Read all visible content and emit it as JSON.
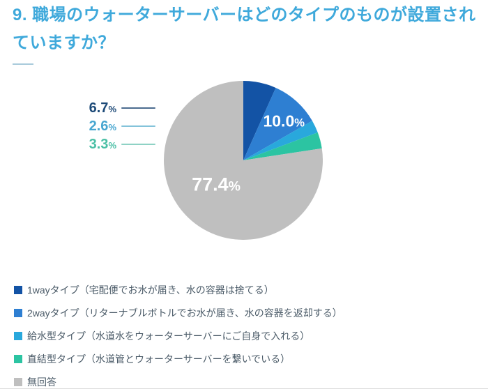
{
  "chart_data": {
    "type": "pie",
    "title": "9. 職場のウォーターサーバーはどのタイプのものが設置されていますか？",
    "title_color": "#3fa9db",
    "categories": [
      "1wayタイプ（宅配便でお水が届き、水の容器は捨てる）",
      "2wayタイプ（リターナブルボトルでお水が届き、水の容器を返却する）",
      "給水型タイプ（水道水をウォーターサーバーにご自身で入れる）",
      "直結型タイプ（水道管とウォーターサーバーを繋いでいる）",
      "無回答"
    ],
    "values": [
      6.7,
      10.0,
      2.6,
      3.3,
      77.4
    ],
    "colors": [
      "#1353a5",
      "#2e7fd2",
      "#29a8dc",
      "#2cc4a2",
      "#bfbfbf"
    ],
    "unit": "%",
    "start_angle_deg": 0,
    "direction": "clockwise",
    "grid": false,
    "legend_position": "bottom-left",
    "legend_text_color": "#4b5b68",
    "data_labels": {
      "inside": [
        {
          "slice_index": 1,
          "value_text": "10.0",
          "unit": "%",
          "color": "#ffffff",
          "angle_deg": 46,
          "radius_frac": 0.71,
          "font_px": 23
        },
        {
          "slice_index": 4,
          "value_text": "77.4",
          "unit": "%",
          "color": "#ffffff",
          "angle_deg": 228,
          "radius_frac": 0.46,
          "font_px": 27
        }
      ],
      "callouts": [
        {
          "slice_index": 0,
          "value_text": "6.7",
          "unit": "%",
          "text_color": "#1d4a78",
          "line_color": "#4a6b8f"
        },
        {
          "slice_index": 2,
          "value_text": "2.6",
          "unit": "%",
          "text_color": "#47a6d0",
          "line_color": "#84c3da"
        },
        {
          "slice_index": 3,
          "value_text": "3.3",
          "unit": "%",
          "text_color": "#4abfa5",
          "line_color": "#8fd2c5"
        }
      ]
    }
  }
}
